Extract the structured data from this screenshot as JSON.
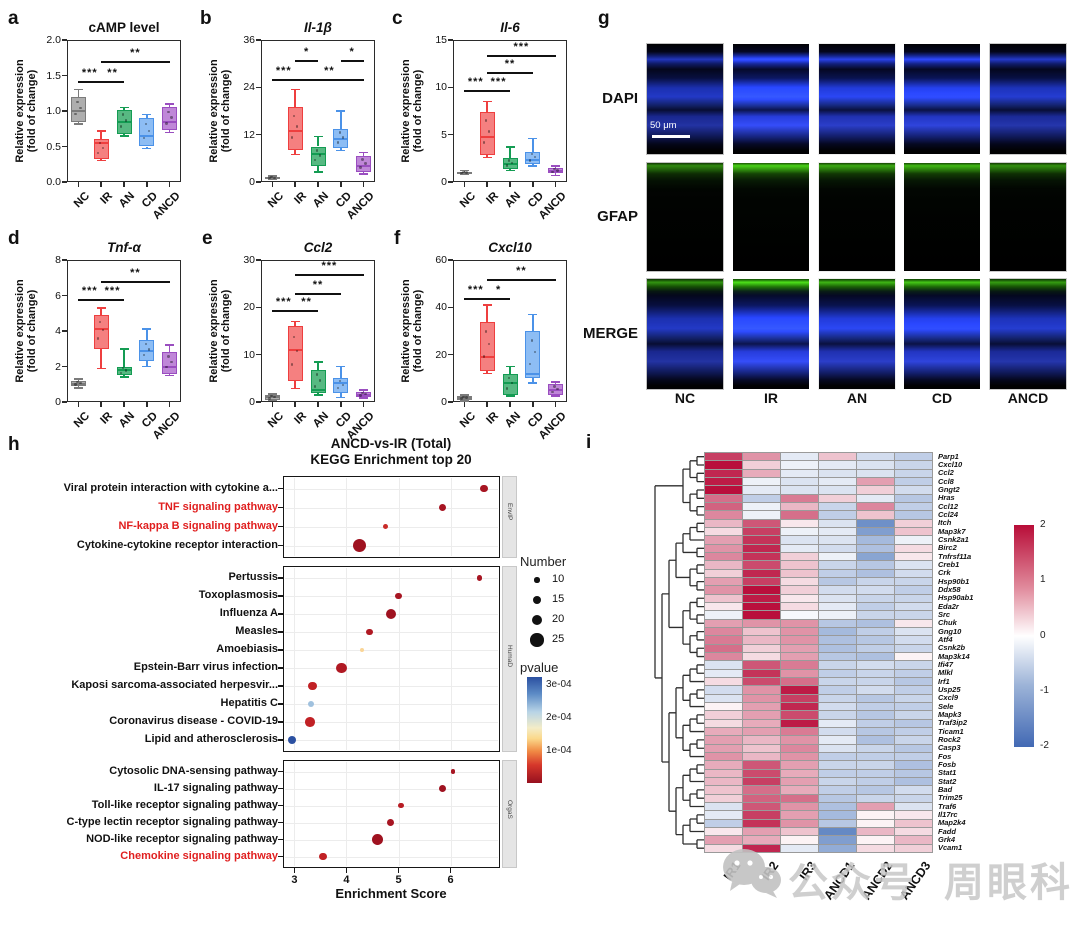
{
  "figure": {
    "panel_letters": {
      "a": "a",
      "b": "b",
      "c": "c",
      "d": "d",
      "e": "e",
      "f": "f",
      "g": "g",
      "h": "h",
      "i": "i"
    },
    "watermark": {
      "left": "公众号",
      "right": "周眼科"
    }
  },
  "boxplot_common": {
    "ylabel_line1": "Relative expression",
    "ylabel_line2": "(fold of change)",
    "categories": [
      "NC",
      "IR",
      "AN",
      "CD",
      "ANCD"
    ],
    "group_colors": {
      "NC": {
        "border": "#7b7b7b",
        "fill": "#aeaeae"
      },
      "IR": {
        "border": "#ee3f3f",
        "fill": "#f58080"
      },
      "AN": {
        "border": "#149c53",
        "fill": "#57b982"
      },
      "CD": {
        "border": "#4b92e8",
        "fill": "#8dbdf4"
      },
      "ANCD": {
        "border": "#9a4ec0",
        "fill": "#bf87d8"
      }
    }
  },
  "chart_data": [
    {
      "type": "box",
      "panel": "a",
      "title": "cAMP level",
      "italic": false,
      "ymin": 0,
      "ymax": 2,
      "yticks": [
        0,
        0.5,
        1,
        1.5,
        2
      ],
      "ytick_labels": [
        "0.0",
        "0.5",
        "1.0",
        "1.5",
        "2.0"
      ],
      "stats": [
        [
          0.82,
          0.85,
          1.0,
          1.2,
          1.3
        ],
        [
          0.3,
          0.33,
          0.55,
          0.6,
          0.72
        ],
        [
          0.65,
          0.68,
          0.85,
          1.02,
          1.05
        ],
        [
          0.47,
          0.5,
          0.65,
          0.9,
          0.95
        ],
        [
          0.7,
          0.73,
          0.85,
          1.05,
          1.1
        ]
      ],
      "sig": [
        {
          "i": 0,
          "j": 1,
          "stars": "***",
          "y": 1.42
        },
        {
          "i": 1,
          "j": 2,
          "stars": "**",
          "y": 1.42
        },
        {
          "i": 1,
          "j": 4,
          "stars": "**",
          "y": 1.7
        }
      ]
    },
    {
      "type": "box",
      "panel": "b",
      "title": "Il-1β",
      "italic": true,
      "ymin": 0,
      "ymax": 36,
      "yticks": [
        0,
        12,
        24,
        36
      ],
      "ytick_labels": [
        "0",
        "12",
        "24",
        "36"
      ],
      "stats": [
        [
          0.6,
          0.8,
          1.0,
          1.3,
          1.5
        ],
        [
          7,
          8,
          13,
          19,
          23.5
        ],
        [
          2.5,
          4,
          7,
          9,
          11.5
        ],
        [
          8,
          8.5,
          11,
          13.5,
          18
        ],
        [
          2,
          2.5,
          4,
          6.5,
          7.5
        ]
      ],
      "sig": [
        {
          "i": 0,
          "j": 1,
          "stars": "***",
          "y": 26
        },
        {
          "i": 1,
          "j": 2,
          "stars": "*",
          "y": 31
        },
        {
          "i": 1,
          "j": 4,
          "stars": "**",
          "y": 26
        },
        {
          "i": 3,
          "j": 4,
          "stars": "*",
          "y": 31
        }
      ]
    },
    {
      "type": "box",
      "panel": "c",
      "title": "Il-6",
      "italic": true,
      "ymin": 0,
      "ymax": 15,
      "yticks": [
        0,
        5,
        10,
        15
      ],
      "ytick_labels": [
        "0",
        "5",
        "10",
        "15"
      ],
      "stats": [
        [
          0.8,
          0.9,
          1.0,
          1.1,
          1.2
        ],
        [
          2.6,
          2.8,
          4.8,
          7.4,
          8.5
        ],
        [
          1.2,
          1.4,
          1.9,
          2.5,
          3.7
        ],
        [
          1.7,
          1.9,
          2.3,
          3.2,
          4.6
        ],
        [
          0.7,
          0.9,
          1.2,
          1.5,
          1.7
        ]
      ],
      "sig": [
        {
          "i": 0,
          "j": 1,
          "stars": "***",
          "y": 9.7
        },
        {
          "i": 1,
          "j": 2,
          "stars": "***",
          "y": 9.7
        },
        {
          "i": 1,
          "j": 3,
          "stars": "**",
          "y": 11.6
        },
        {
          "i": 1,
          "j": 4,
          "stars": "***",
          "y": 13.4
        }
      ]
    },
    {
      "type": "box",
      "panel": "d",
      "title": "Tnf-α",
      "italic": true,
      "ymin": 0,
      "ymax": 8,
      "yticks": [
        0,
        2,
        4,
        6,
        8
      ],
      "ytick_labels": [
        "0",
        "2",
        "4",
        "6",
        "8"
      ],
      "stats": [
        [
          0.8,
          0.9,
          1.0,
          1.2,
          1.3
        ],
        [
          1.9,
          3.0,
          4.1,
          4.9,
          5.3
        ],
        [
          1.4,
          1.5,
          1.8,
          2.0,
          3.0
        ],
        [
          2.0,
          2.3,
          2.9,
          3.5,
          4.1
        ],
        [
          1.5,
          1.6,
          2.0,
          2.8,
          3.2
        ]
      ],
      "sig": [
        {
          "i": 0,
          "j": 1,
          "stars": "***",
          "y": 5.8
        },
        {
          "i": 1,
          "j": 2,
          "stars": "***",
          "y": 5.8
        },
        {
          "i": 1,
          "j": 4,
          "stars": "**",
          "y": 6.8
        }
      ]
    },
    {
      "type": "box",
      "panel": "e",
      "title": "Ccl2",
      "italic": true,
      "ymin": 0,
      "ymax": 30,
      "yticks": [
        0,
        10,
        20,
        30
      ],
      "ytick_labels": [
        "0",
        "10",
        "20",
        "30"
      ],
      "stats": [
        [
          0.3,
          0.5,
          1.0,
          1.4,
          1.7
        ],
        [
          2.8,
          4.5,
          11,
          16,
          17
        ],
        [
          1.5,
          1.8,
          2.5,
          6.8,
          8.5
        ],
        [
          1.0,
          2.0,
          4.0,
          5.0,
          7.5
        ],
        [
          0.8,
          1.0,
          1.5,
          2.2,
          2.5
        ]
      ],
      "sig": [
        {
          "i": 0,
          "j": 1,
          "stars": "***",
          "y": 19.5
        },
        {
          "i": 1,
          "j": 2,
          "stars": "**",
          "y": 19.5
        },
        {
          "i": 1,
          "j": 3,
          "stars": "**",
          "y": 23
        },
        {
          "i": 1,
          "j": 4,
          "stars": "***",
          "y": 27
        }
      ]
    },
    {
      "type": "box",
      "panel": "f",
      "title": "Cxcl10",
      "italic": true,
      "ymin": 0,
      "ymax": 60,
      "yticks": [
        0,
        20,
        40,
        60
      ],
      "ytick_labels": [
        "0",
        "20",
        "40",
        "60"
      ],
      "stats": [
        [
          0.5,
          1,
          1.5,
          2.5,
          3
        ],
        [
          12,
          13,
          19,
          34,
          41
        ],
        [
          2.5,
          3,
          8,
          12,
          15
        ],
        [
          8,
          10,
          12,
          30,
          37
        ],
        [
          2.5,
          3,
          5,
          7.5,
          8.5
        ]
      ],
      "sig": [
        {
          "i": 0,
          "j": 1,
          "stars": "***",
          "y": 44
        },
        {
          "i": 1,
          "j": 2,
          "stars": "*",
          "y": 44
        },
        {
          "i": 1,
          "j": 4,
          "stars": "**",
          "y": 52
        }
      ]
    },
    {
      "type": "scatter",
      "panel": "h",
      "title_line1": "ANCD-vs-IR (Total)",
      "title_line2": "KEGG Enrichment top 20",
      "xlabel": "Enrichment Score",
      "xticks": [
        3,
        4,
        5,
        6
      ],
      "xmin": 2.78,
      "xmax": 6.95,
      "red_color": "#e01f1f",
      "facets": [
        {
          "label": "EnvIP",
          "rows": [
            {
              "label": "Viral protein interaction with cytokine a...",
              "red": false,
              "score": 6.65,
              "number": 15,
              "pvalue": 2e-05
            },
            {
              "label": "TNF signaling pathway",
              "red": true,
              "score": 5.85,
              "number": 14,
              "pvalue": 2e-05
            },
            {
              "label": "NF-kappa B signaling pathway",
              "red": true,
              "score": 4.75,
              "number": 10,
              "pvalue": 6e-05
            },
            {
              "label": "Cytokine-cytokine receptor interaction",
              "red": false,
              "score": 4.25,
              "number": 26,
              "pvalue": 1e-05
            }
          ]
        },
        {
          "label": "HumaD",
          "rows": [
            {
              "label": "Pertussis",
              "red": false,
              "score": 6.55,
              "number": 10,
              "pvalue": 2e-05
            },
            {
              "label": "Toxoplasmosis",
              "red": false,
              "score": 5.0,
              "number": 13,
              "pvalue": 2e-05
            },
            {
              "label": "Influenza A",
              "red": false,
              "score": 4.85,
              "number": 19,
              "pvalue": 1e-05
            },
            {
              "label": "Measles",
              "red": false,
              "score": 4.45,
              "number": 13,
              "pvalue": 3e-05
            },
            {
              "label": "Amoebiasis",
              "red": false,
              "score": 4.3,
              "number": 8,
              "pvalue": 0.00014
            },
            {
              "label": "Epstein-Barr virus infection",
              "red": false,
              "score": 3.9,
              "number": 20,
              "pvalue": 3e-05
            },
            {
              "label": "Kaposi sarcoma-associated herpesvir...",
              "red": false,
              "score": 3.35,
              "number": 16,
              "pvalue": 5e-05
            },
            {
              "label": "Hepatitis C",
              "red": false,
              "score": 3.32,
              "number": 12,
              "pvalue": 0.00021
            },
            {
              "label": "Coronavirus disease - COVID-19",
              "red": false,
              "score": 3.3,
              "number": 18,
              "pvalue": 5e-05
            },
            {
              "label": "Lipid and atherosclerosis",
              "red": false,
              "score": 2.95,
              "number": 15,
              "pvalue": 0.0003
            }
          ]
        },
        {
          "label": "OrgaS",
          "rows": [
            {
              "label": "Cytosolic DNA-sensing pathway",
              "red": false,
              "score": 6.05,
              "number": 8,
              "pvalue": 2e-05
            },
            {
              "label": "IL-17 signaling pathway",
              "red": false,
              "score": 5.85,
              "number": 14,
              "pvalue": 1e-05
            },
            {
              "label": "Toll-like receptor signaling pathway",
              "red": false,
              "score": 5.05,
              "number": 11,
              "pvalue": 4e-05
            },
            {
              "label": "C-type lectin receptor signaling pathway",
              "red": false,
              "score": 4.85,
              "number": 13,
              "pvalue": 2e-05
            },
            {
              "label": "NOD-like receptor signaling pathway",
              "red": false,
              "score": 4.6,
              "number": 20,
              "pvalue": 1e-05
            },
            {
              "label": "Chemokine signaling pathway",
              "red": true,
              "score": 3.55,
              "number": 14,
              "pvalue": 5e-05
            }
          ]
        }
      ],
      "legend": {
        "number_title": "Number",
        "sizes": [
          10,
          15,
          20,
          25
        ],
        "pvalue_title": "pvalue",
        "pvalue_ticks": [
          "3e-04",
          "2e-04",
          "1e-04"
        ]
      }
    },
    {
      "type": "heatmap",
      "panel": "i",
      "vmin": -2,
      "vmax": 2,
      "columns": [
        "IR1",
        "IR2",
        "IR3",
        "ANCD1",
        "ANCD2",
        "ANCD3"
      ],
      "colorbar_ticks": [
        "2",
        "1",
        "0",
        "-1",
        "-2"
      ],
      "genes": [
        "Parp1",
        "Cxcl10",
        "Ccl2",
        "Ccl8",
        "Gngt2",
        "Hras",
        "Ccl12",
        "Ccl24",
        "Itch",
        "Map3k7",
        "Csnk2a1",
        "Birc2",
        "Tnfrsf11a",
        "Creb1",
        "Crk",
        "Hsp90b1",
        "Ddx58",
        "Hsp90ab1",
        "Eda2r",
        "Src",
        "Chuk",
        "Gng10",
        "Atf4",
        "Csnk2b",
        "Map3k14",
        "Ifi47",
        "Mlkl",
        "Irf1",
        "Usp25",
        "Cxcl9",
        "Sele",
        "Mapk3",
        "Traf3ip2",
        "Ticam1",
        "Rock2",
        "Casp3",
        "Fos",
        "Fosb",
        "Stat1",
        "Stat2",
        "Bad",
        "Trim25",
        "Traf6",
        "Il17rc",
        "Map2k4",
        "Fadd",
        "Grk4",
        "Vcam1"
      ],
      "values": [
        [
          1.6,
          0.9,
          -0.3,
          0.5,
          -0.5,
          -0.7
        ],
        [
          2.0,
          0.4,
          -0.2,
          -0.3,
          -0.4,
          -0.6
        ],
        [
          1.8,
          0.7,
          -0.3,
          -0.4,
          -0.4,
          -0.6
        ],
        [
          1.9,
          -0.2,
          -0.4,
          -0.3,
          0.8,
          -0.7
        ],
        [
          2.0,
          -0.3,
          -0.4,
          -0.4,
          0.4,
          -0.5
        ],
        [
          1.2,
          -0.7,
          1.1,
          0.4,
          -0.3,
          -0.8
        ],
        [
          1.3,
          -0.2,
          0.6,
          -0.6,
          1.0,
          -0.7
        ],
        [
          1.0,
          -0.2,
          1.2,
          -0.7,
          0.5,
          -0.8
        ],
        [
          0.6,
          1.4,
          0.2,
          -0.4,
          -1.6,
          0.4
        ],
        [
          0.3,
          1.6,
          -0.2,
          -0.3,
          -1.4,
          0.5
        ],
        [
          0.8,
          1.7,
          -0.4,
          -0.4,
          -1.0,
          -0.2
        ],
        [
          0.9,
          1.8,
          -0.3,
          -0.5,
          -0.9,
          0.3
        ],
        [
          1.0,
          1.7,
          0.4,
          -0.2,
          -1.3,
          0.2
        ],
        [
          0.6,
          1.5,
          0.5,
          -0.6,
          -0.8,
          -0.4
        ],
        [
          0.4,
          1.8,
          0.5,
          -0.7,
          -0.9,
          -0.5
        ],
        [
          0.8,
          1.6,
          0.3,
          -0.8,
          -0.6,
          -0.6
        ],
        [
          0.9,
          2.0,
          0.4,
          -0.5,
          -0.5,
          -0.7
        ],
        [
          0.5,
          1.9,
          0.2,
          -0.4,
          -0.6,
          -0.6
        ],
        [
          0.2,
          2.0,
          0.3,
          -0.3,
          -0.7,
          -0.5
        ],
        [
          -0.2,
          2.0,
          -0.1,
          -0.2,
          -0.6,
          -0.6
        ],
        [
          0.8,
          0.9,
          0.9,
          -0.8,
          -0.9,
          0.2
        ],
        [
          1.0,
          0.5,
          0.9,
          -1.0,
          -0.7,
          -0.4
        ],
        [
          1.1,
          0.6,
          0.9,
          -0.9,
          -0.8,
          -0.5
        ],
        [
          1.2,
          0.4,
          0.8,
          -0.9,
          -0.7,
          -0.6
        ],
        [
          1.0,
          0.3,
          0.8,
          -0.8,
          -0.9,
          0.1
        ],
        [
          -0.4,
          1.4,
          1.1,
          -0.6,
          -0.5,
          -0.6
        ],
        [
          -0.3,
          1.7,
          0.9,
          -0.7,
          -0.6,
          -0.7
        ],
        [
          0.3,
          1.5,
          1.2,
          -0.6,
          -0.6,
          -0.8
        ],
        [
          -0.5,
          0.9,
          1.9,
          -0.7,
          -0.5,
          -0.7
        ],
        [
          -0.4,
          0.9,
          1.6,
          -0.6,
          -0.8,
          -0.6
        ],
        [
          0.1,
          0.8,
          1.8,
          -0.5,
          -0.7,
          -0.7
        ],
        [
          0.4,
          0.8,
          1.5,
          -0.6,
          -0.8,
          -0.6
        ],
        [
          0.3,
          0.7,
          1.9,
          -0.3,
          -0.7,
          -0.8
        ],
        [
          0.7,
          0.8,
          1.1,
          -0.5,
          -0.8,
          -0.7
        ],
        [
          0.8,
          0.6,
          0.9,
          -0.3,
          -0.9,
          -0.6
        ],
        [
          0.8,
          0.5,
          1.0,
          -0.4,
          -0.6,
          -0.8
        ],
        [
          0.9,
          0.6,
          0.9,
          -0.7,
          -0.7,
          -0.7
        ],
        [
          0.7,
          1.4,
          0.8,
          -0.6,
          -0.6,
          -0.9
        ],
        [
          0.6,
          1.5,
          0.7,
          -0.7,
          -0.7,
          -0.8
        ],
        [
          0.6,
          1.6,
          0.8,
          -0.6,
          -0.7,
          -0.9
        ],
        [
          0.5,
          1.2,
          0.7,
          -0.7,
          -0.8,
          -0.5
        ],
        [
          0.4,
          1.3,
          1.2,
          -0.8,
          -0.6,
          -0.6
        ],
        [
          -0.4,
          1.4,
          0.9,
          -0.9,
          0.8,
          -0.4
        ],
        [
          -0.3,
          1.6,
          0.8,
          -1.0,
          0.1,
          0.2
        ],
        [
          -0.7,
          1.7,
          0.9,
          -0.8,
          0.1,
          0.5
        ],
        [
          0.2,
          0.8,
          0.5,
          -1.7,
          0.6,
          0.3
        ],
        [
          0.8,
          0.7,
          0.1,
          -1.4,
          0.1,
          0.6
        ],
        [
          0.3,
          1.8,
          -0.3,
          -1.2,
          0.3,
          0.4
        ]
      ]
    }
  ],
  "microscopy": {
    "rows": [
      "DAPI",
      "GFAP",
      "MERGE"
    ],
    "columns": [
      "NC",
      "IR",
      "AN",
      "CD",
      "ANCD"
    ],
    "scalebar": "50 μm"
  }
}
